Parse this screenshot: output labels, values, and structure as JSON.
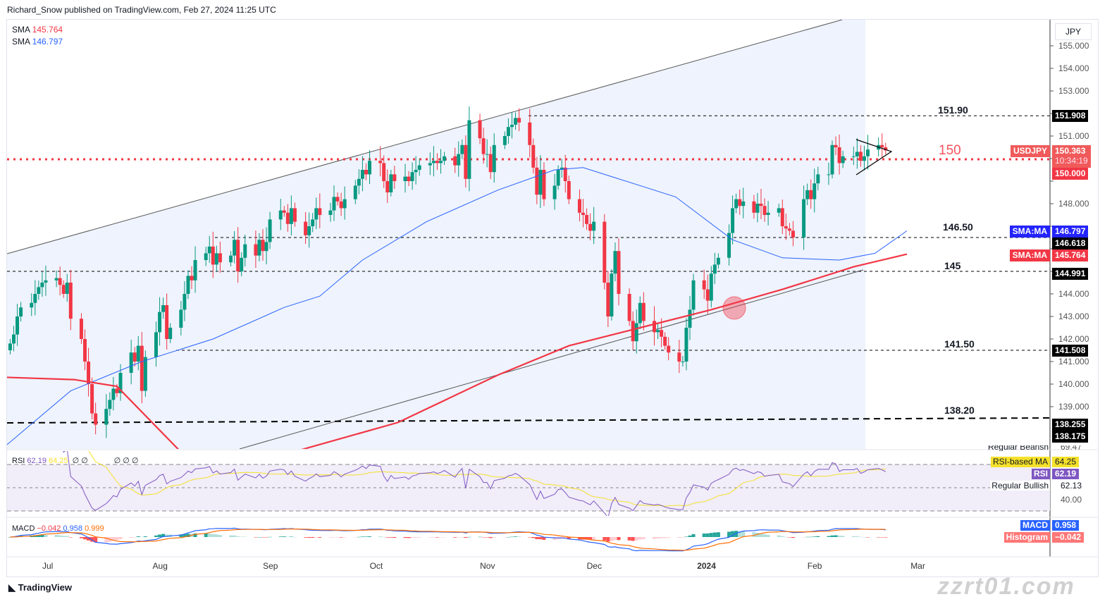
{
  "header": {
    "publisher": "Richard_Snow published on TradingView.com, Feb 27, 2024 11:25 UTC"
  },
  "legend": {
    "sma1_label": "SMA",
    "sma1_value": "145.764",
    "sma2_label": "SMA",
    "sma2_value": "146.797"
  },
  "colors": {
    "up": "#089981",
    "down": "#f23645",
    "sma_fast": "#2962ff",
    "sma_slow": "#f23645",
    "channel_fill": "#eef3fd",
    "rsi": "#7e57c2",
    "rsi_ma": "#f5e12b",
    "macd": "#2962ff",
    "signal": "#ff6d00"
  },
  "axis": {
    "currency": "JPY"
  },
  "tags": {
    "high": "151.908",
    "symbol": "USDJPY",
    "price": "150.363",
    "countdown": "10:34:19",
    "level150": "150.000",
    "sma_ma": "SMA:MA",
    "sma_fast": "146.797",
    "lvl14650": "146.618",
    "sma_slow": "145.764",
    "lvl145": "144.991",
    "lvl14150": "141.508",
    "lvl13820a": "138.255",
    "lvl13820b": "138.175"
  },
  "levels": {
    "l1": "151.90",
    "l2": "150",
    "l3": "146.50",
    "l4": "145",
    "l5": "141.50",
    "l6": "138.20"
  },
  "rsi": {
    "legend": "RSI",
    "value": "62.19",
    "ma": "64.25",
    "empties": "∅ ∅",
    "empties2": "∅ ∅ ∅",
    "tag_bearish": "Regular Bearish",
    "bearish_val": "69.47",
    "tag_ma": "RSI-based MA",
    "tag_rsi": "RSI",
    "tag_bullish": "Regular Bullish",
    "bullish_val": "62.13",
    "tick40": "40.00"
  },
  "macd": {
    "legend": "MACD",
    "hist": "−0.042",
    "macd": "0.958",
    "signal": "0.999",
    "tag_macd": "MACD",
    "tag_hist": "Histogram",
    "tag_hist_val": "−0.042"
  },
  "footer": {
    "brand": "TradingView",
    "watermark": "zzrt01.com"
  },
  "chart_data": {
    "type": "candlestick",
    "symbol": "USDJPY",
    "timeframe": "1D",
    "x_ticks": [
      "Jul",
      "Aug",
      "Sep",
      "Oct",
      "Nov",
      "Dec",
      "2024",
      "Feb",
      "Mar"
    ],
    "y_ticks": [
      155,
      154,
      153,
      152,
      151,
      150,
      149,
      148,
      147,
      146,
      145,
      144,
      143,
      142,
      141,
      140,
      139
    ],
    "ylim": [
      137.1,
      156.2
    ],
    "start_date": "2023-06-20",
    "closes": [
      141.8,
      142.2,
      143.0,
      143.4,
      143.6,
      144.0,
      144.3,
      144.5,
      144.6,
      144.7,
      144.4,
      144.0,
      144.5,
      142.9,
      142.0,
      141.0,
      140.0,
      138.7,
      138.2,
      138.9,
      139.3,
      139.8,
      139.6,
      140.5,
      141.4,
      141.0,
      141.7,
      139.7,
      141.2,
      142.3,
      143.2,
      143.5,
      142.0,
      142.5,
      143.3,
      144.0,
      144.8,
      144.6,
      145.5,
      145.8,
      146.1,
      145.3,
      145.8,
      145.4,
      145.7,
      146.4,
      145.0,
      145.6,
      146.2,
      145.7,
      146.4,
      145.9,
      146.3,
      147.3,
      147.7,
      147.6,
      147.1,
      147.8,
      147.2,
      146.6,
      147.0,
      147.3,
      147.8,
      147.5,
      147.7,
      148.3,
      148.1,
      147.8,
      148.2,
      148.8,
      149.1,
      149.5,
      149.3,
      149.9,
      149.8,
      149.0,
      148.5,
      149.3,
      149.0,
      149.2,
      149.0,
      149.4,
      149.5,
      149.7,
      149.8,
      149.9,
      149.8,
      149.9,
      150.1,
      149.7,
      150.2,
      150.6,
      149.1,
      151.7,
      150.9,
      150.2,
      150.2,
      149.4,
      150.6,
      151.0,
      151.4,
      151.5,
      151.8,
      151.6,
      150.6,
      149.6,
      148.4,
      149.5,
      148.2,
      148.8,
      149.5,
      149.6,
      149.0,
      148.2,
      147.6,
      147.5,
      147.1,
      146.8,
      147.2,
      144.5,
      143.0,
      144.9,
      145.9,
      144.0,
      142.8,
      141.9,
      142.7,
      143.6,
      142.8,
      142.3,
      142.4,
      142.1,
      141.7,
      141.4,
      141.0,
      141.0,
      142.5,
      143.3,
      144.6,
      144.2,
      143.7,
      144.9,
      145.3,
      145.6,
      146.7,
      147.8,
      148.2,
      147.9,
      148.1,
      147.6,
      148.0,
      147.9,
      147.5,
      147.6,
      147.8,
      147.0,
      146.9,
      146.8,
      146.5,
      148.2,
      148.6,
      148.2,
      148.9,
      149.3,
      149.3,
      150.6,
      150.5,
      149.8,
      150.1,
      150.1,
      150.3,
      149.9,
      150.1,
      150.4,
      150.6,
      150.5,
      150.363
    ],
    "sma_fast": [
      [
        "2023-06-19",
        137.3
      ],
      [
        "2023-07-07",
        139.7
      ],
      [
        "2023-07-27",
        141.0
      ],
      [
        "2023-08-16",
        142.0
      ],
      [
        "2023-09-05",
        143.4
      ],
      [
        "2023-09-15",
        143.9
      ],
      [
        "2023-09-27",
        145.5
      ],
      [
        "2023-10-15",
        147.2
      ],
      [
        "2023-11-04",
        148.6
      ],
      [
        "2023-11-20",
        149.5
      ],
      [
        "2023-11-28",
        149.6
      ],
      [
        "2023-12-06",
        149.2
      ],
      [
        "2023-12-24",
        148.3
      ],
      [
        "2024-01-09",
        146.4
      ],
      [
        "2024-01-23",
        145.6
      ],
      [
        "2024-02-08",
        145.5
      ],
      [
        "2024-02-18",
        145.8
      ],
      [
        "2024-02-27",
        146.797
      ]
    ],
    "sma_slow": [
      [
        "2023-06-19",
        140.3
      ],
      [
        "2023-07-08",
        140.2
      ],
      [
        "2023-07-20",
        139.9
      ],
      [
        "2023-08-10",
        136.5
      ],
      [
        "2023-09-10",
        137.1
      ],
      [
        "2023-10-07",
        138.3
      ],
      [
        "2023-11-04",
        140.4
      ],
      [
        "2023-11-24",
        141.7
      ],
      [
        "2023-12-14",
        142.5
      ],
      [
        "2024-01-03",
        143.3
      ],
      [
        "2024-01-23",
        144.2
      ],
      [
        "2024-02-12",
        145.2
      ],
      [
        "2024-02-27",
        145.764
      ]
    ],
    "horizontal_levels": [
      151.9,
      150,
      146.5,
      145,
      141.5,
      138.2
    ],
    "rsi": {
      "value": 62.19,
      "ma": 64.25,
      "bands": [
        70,
        50,
        30
      ]
    },
    "macd": {
      "macd": 0.958,
      "signal": 0.999,
      "hist": -0.042
    }
  }
}
